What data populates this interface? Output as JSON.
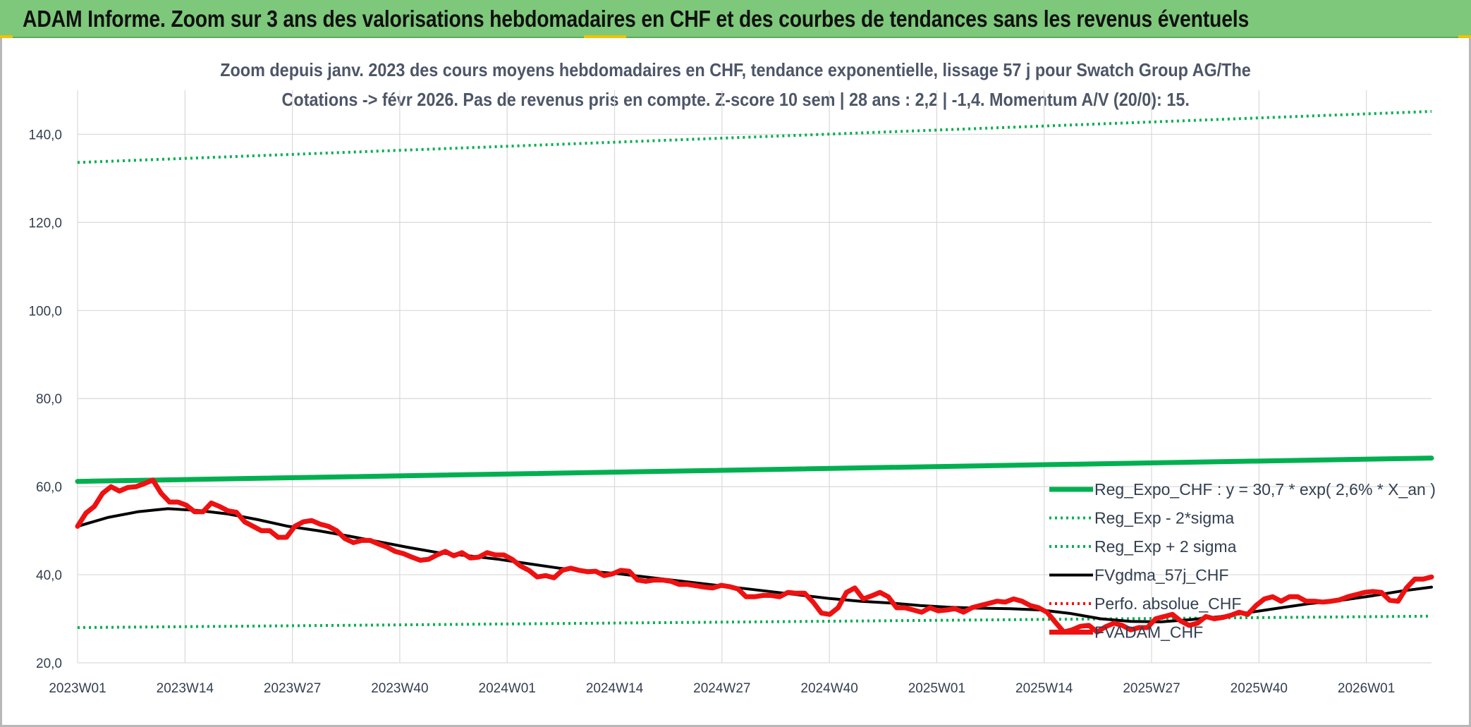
{
  "banner": {
    "title": "ADAM Informe. Zoom sur 3 ans des valorisations hebdomadaires en CHF et des courbes de tendances sans les revenus éventuels"
  },
  "chart_data": {
    "type": "line",
    "title_line1": "Zoom depuis janv. 2023 des cours moyens hebdomadaires en CHF, tendance exponentielle, lissage 57 j pour Swatch Group AG/The",
    "title_line2": "Cotations -> févr 2026. Pas de revenus pris en compte. Z-score 10 sem | 28 ans : 2,2 | -1,4. Momentum A/V (20/0): 15.",
    "ylim": [
      20,
      150
    ],
    "y_ticks": [
      "20,0",
      "40,0",
      "60,0",
      "80,0",
      "100,0",
      "120,0",
      "140,0"
    ],
    "x_ticks": [
      "2023W01",
      "2023W14",
      "2023W27",
      "2023W40",
      "2024W01",
      "2024W14",
      "2024W27",
      "2024W40",
      "2025W01",
      "2025W14",
      "2025W27",
      "2025W40",
      "2026W01"
    ],
    "grid": true,
    "legend_position": "bottom-right",
    "series": [
      {
        "name": "Reg_Expo_CHF : y = 30,7 * exp( 2,6% *  X_an )",
        "color": "#00b050",
        "style": "solid-thick",
        "values": [
          61.2,
          66.5
        ]
      },
      {
        "name": "Reg_Exp - 2*sigma",
        "color": "#00b050",
        "style": "dotted",
        "values": [
          28.0,
          30.6
        ]
      },
      {
        "name": "Reg_Exp + 2 sigma",
        "color": "#00b050",
        "style": "dotted",
        "values": [
          133.6,
          145.2
        ]
      },
      {
        "name": "FVgdma_57j_CHF",
        "color": "#000000",
        "style": "solid",
        "values": [
          51.0,
          53.0,
          54.3,
          55.0,
          54.6,
          53.8,
          52.5,
          51.0,
          50.0,
          48.8,
          47.5,
          46.2,
          45.0,
          44.3,
          43.5,
          42.5,
          41.5,
          40.8,
          40.2,
          39.4,
          38.6,
          37.8,
          37.0,
          36.2,
          35.4,
          34.6,
          34.0,
          33.6,
          33.0,
          32.6,
          32.4,
          32.3,
          32.0,
          31.2,
          30.0,
          29.4,
          29.3,
          29.8,
          30.5,
          31.5,
          32.5,
          33.5,
          34.2,
          35.2,
          36.3,
          37.2
        ]
      },
      {
        "name": "Perfo. absolue_CHF",
        "color": "#ff0000",
        "style": "dotted",
        "values": []
      },
      {
        "name": "FVADAM_CHF",
        "color": "#ee1111",
        "style": "solid-thick",
        "values": [
          51.0,
          54.0,
          55.5,
          58.5,
          60.0,
          59.0,
          59.8,
          60.0,
          60.7,
          61.5,
          58.5,
          56.5,
          56.5,
          55.8,
          54.3,
          54.3,
          56.3,
          55.5,
          54.5,
          54.2,
          52.0,
          51.0,
          50.0,
          50.0,
          48.5,
          48.5,
          51.0,
          52.0,
          52.3,
          51.5,
          51.0,
          50.0,
          48.2,
          47.3,
          47.8,
          47.8,
          47.0,
          46.3,
          45.3,
          44.8,
          44.0,
          43.3,
          43.5,
          44.5,
          45.3,
          44.3,
          45.0,
          43.8,
          44.0,
          45.0,
          44.5,
          44.5,
          43.5,
          42.0,
          41.0,
          39.5,
          39.8,
          39.3,
          41.0,
          41.5,
          41.0,
          40.7,
          40.8,
          39.8,
          40.2,
          41.0,
          40.8,
          38.8,
          38.5,
          38.8,
          38.8,
          38.5,
          37.8,
          37.8,
          37.5,
          37.2,
          37.0,
          37.6,
          37.3,
          36.8,
          35.0,
          35.0,
          35.3,
          35.3,
          35.0,
          36.0,
          35.8,
          35.8,
          33.8,
          31.3,
          31.0,
          32.5,
          36.0,
          37.0,
          34.5,
          35.2,
          36.0,
          35.0,
          32.5,
          32.5,
          32.0,
          31.5,
          32.5,
          31.8,
          32.0,
          32.3,
          31.5,
          32.5,
          33.0,
          33.5,
          34.0,
          33.8,
          34.5,
          34.0,
          33.0,
          32.5,
          31.5,
          29.2,
          27.0,
          27.5,
          28.3,
          28.5,
          27.0,
          28.2,
          29.0,
          28.5,
          27.5,
          28.0,
          28.0,
          30.0,
          30.5,
          31.0,
          29.5,
          28.5,
          29.0,
          30.5,
          30.0,
          30.3,
          30.8,
          31.5,
          31.0,
          33.0,
          34.5,
          35.0,
          34.0,
          35.0,
          35.0,
          34.0,
          34.0,
          33.8,
          34.0,
          34.3,
          35.0,
          35.5,
          36.0,
          36.2,
          36.0,
          34.2,
          34.0,
          37.0,
          39.0,
          39.0,
          39.5
        ]
      }
    ]
  }
}
